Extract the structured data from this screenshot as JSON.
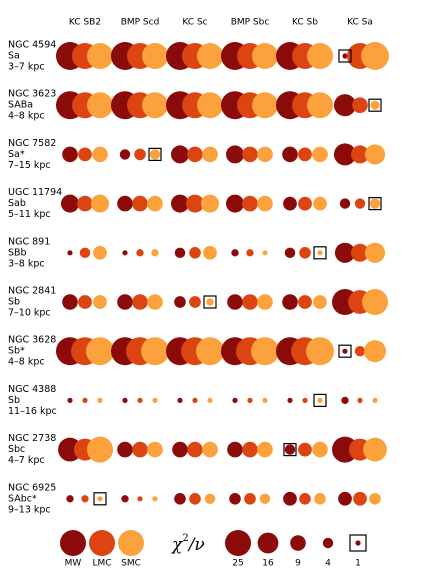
{
  "chart_data": {
    "type": "bubble",
    "columns": [
      "KC SB2",
      "BMP Scd",
      "KC Sc",
      "BMP Sbc",
      "KC Sb",
      "KC Sa"
    ],
    "series": [
      {
        "name": "MW",
        "color": "#8b0a0a"
      },
      {
        "name": "LMC",
        "color": "#dc4412"
      },
      {
        "name": "SMC",
        "color": "#fba23c"
      }
    ],
    "size_label": {
      "base": "χ",
      "sup": "2",
      "rest": "/ν"
    },
    "size_legend": [
      25,
      16,
      9,
      4,
      1
    ],
    "rows": [
      {
        "name": "NGC 4594",
        "type": "Sa",
        "range": "3–7 kpc",
        "values": [
          [
            29,
            25,
            25
          ],
          [
            29,
            25,
            25
          ],
          [
            29,
            25,
            25
          ],
          [
            29,
            25,
            25
          ],
          [
            29,
            25,
            25
          ],
          [
            1,
            25,
            29
          ]
        ],
        "best": [
          5,
          0
        ]
      },
      {
        "name": "NGC 3623",
        "type": "SABa",
        "range": "4–8 kpc",
        "values": [
          [
            29,
            25,
            25
          ],
          [
            29,
            25,
            25
          ],
          [
            29,
            25,
            25
          ],
          [
            29,
            25,
            25
          ],
          [
            29,
            25,
            25
          ],
          [
            18,
            9,
            3
          ]
        ],
        "best": [
          5,
          2
        ]
      },
      {
        "name": "NGC 7582",
        "type": "Sa*",
        "range": "7–15 kpc",
        "values": [
          [
            9,
            7,
            9
          ],
          [
            4,
            5,
            4
          ],
          [
            12,
            9,
            9
          ],
          [
            12,
            9,
            9
          ],
          [
            9,
            7,
            9
          ],
          [
            18,
            12,
            15
          ]
        ],
        "best": [
          1,
          2
        ]
      },
      {
        "name": "UGC 11794",
        "type": "Sab",
        "range": "5–11 kpc",
        "values": [
          [
            12,
            9,
            12
          ],
          [
            9,
            9,
            9
          ],
          [
            12,
            12,
            12
          ],
          [
            12,
            9,
            9
          ],
          [
            7,
            7,
            7
          ],
          [
            4,
            4,
            4
          ]
        ],
        "best": [
          5,
          2
        ]
      },
      {
        "name": "NGC 891",
        "type": "SBb",
        "range": "3–8 kpc",
        "values": [
          [
            1,
            4,
            7
          ],
          [
            1,
            2,
            2
          ],
          [
            4,
            5,
            7
          ],
          [
            2,
            2,
            1
          ],
          [
            4,
            5,
            1
          ],
          [
            15,
            12,
            15
          ]
        ],
        "best": [
          4,
          2
        ]
      },
      {
        "name": "NGC 2841",
        "type": "Sb",
        "range": "7–10 kpc",
        "values": [
          [
            9,
            7,
            7
          ],
          [
            9,
            9,
            9
          ],
          [
            5,
            5,
            2
          ],
          [
            9,
            9,
            9
          ],
          [
            9,
            7,
            7
          ],
          [
            25,
            21,
            25
          ]
        ],
        "best": [
          2,
          2
        ]
      },
      {
        "name": "NGC 3628",
        "type": "Sb*",
        "range": "4–8 kpc",
        "values": [
          [
            29,
            29,
            29
          ],
          [
            29,
            29,
            29
          ],
          [
            29,
            29,
            29
          ],
          [
            29,
            29,
            29
          ],
          [
            29,
            29,
            29
          ],
          [
            1,
            4,
            18
          ]
        ],
        "best": [
          5,
          0
        ]
      },
      {
        "name": "NGC 4388",
        "type": "Sb",
        "range": "11–16 kpc",
        "values": [
          [
            1,
            1,
            1
          ],
          [
            1,
            1,
            1
          ],
          [
            1,
            1,
            1
          ],
          [
            1,
            1,
            1
          ],
          [
            1,
            1,
            1
          ],
          [
            2,
            1,
            1
          ]
        ],
        "best": [
          4,
          2
        ]
      },
      {
        "name": "NGC 2738",
        "type": "Sbc",
        "range": "4–7 kpc",
        "values": [
          [
            21,
            18,
            25
          ],
          [
            9,
            9,
            9
          ],
          [
            9,
            9,
            9
          ],
          [
            9,
            9,
            9
          ],
          [
            4,
            7,
            9
          ],
          [
            25,
            18,
            21
          ]
        ],
        "best": [
          4,
          0
        ]
      },
      {
        "name": "NGC 6925",
        "type": "SAbc*",
        "range": "9–13 kpc",
        "values": [
          [
            2,
            2,
            1
          ],
          [
            2,
            1,
            1
          ],
          [
            5,
            5,
            4
          ],
          [
            5,
            5,
            4
          ],
          [
            7,
            5,
            5
          ],
          [
            7,
            7,
            5
          ]
        ],
        "best": [
          0,
          2
        ]
      }
    ]
  }
}
